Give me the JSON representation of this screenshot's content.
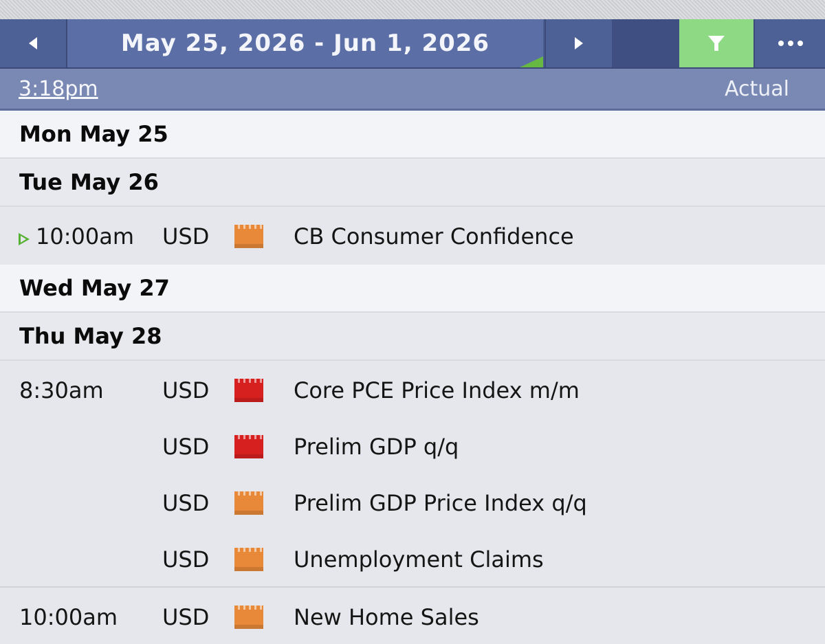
{
  "header": {
    "date_range": "May 25, 2026 - Jun 1, 2026",
    "prev_icon": "triangle-left-icon",
    "next_icon": "triangle-right-icon",
    "filter_icon": "funnel-icon",
    "more_icon": "ellipsis-icon",
    "filter_color": "#8dd984",
    "accent_color": "#4b5d91"
  },
  "subheader": {
    "current_time": "3:18pm",
    "column_label": "Actual"
  },
  "impact_colors": {
    "medium": "#e8893a",
    "high": "#d61f1f"
  },
  "days": [
    {
      "label": "Mon May 25"
    },
    {
      "label": "Tue May 26"
    },
    {
      "label": "Wed May 27"
    },
    {
      "label": "Thu May 28"
    }
  ],
  "events": [
    {
      "time": "10:00am",
      "currency": "USD",
      "impact": "medium",
      "title": "CB Consumer Confidence"
    },
    {
      "time": "8:30am",
      "currency": "USD",
      "impact": "high",
      "title": "Core PCE Price Index m/m"
    },
    {
      "time": "",
      "currency": "USD",
      "impact": "high",
      "title": "Prelim GDP q/q"
    },
    {
      "time": "",
      "currency": "USD",
      "impact": "medium",
      "title": "Prelim GDP Price Index q/q"
    },
    {
      "time": "",
      "currency": "USD",
      "impact": "medium",
      "title": "Unemployment Claims"
    },
    {
      "time": "10:00am",
      "currency": "USD",
      "impact": "medium",
      "title": "New Home Sales"
    }
  ]
}
